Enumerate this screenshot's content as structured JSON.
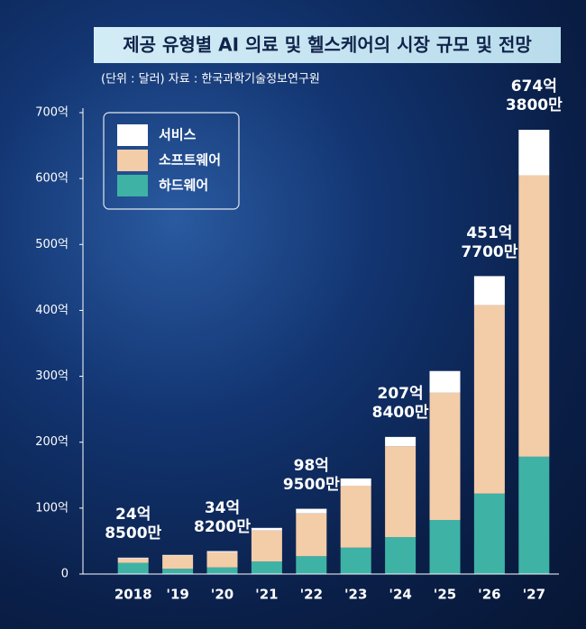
{
  "chart_data": {
    "type": "stacked_bar",
    "title": "제공 유형별 AI 의료 및 헬스케어의 시장 규모 및 전망",
    "subtitle": "(단위 : 달러)  자료 : 한국과학기술정보연구원",
    "categories": [
      "2018",
      "'19",
      "'20",
      "'21",
      "'22",
      "'23",
      "'24",
      "'25",
      "'26",
      "'27"
    ],
    "series": [
      {
        "name": "하드웨어",
        "color": "#3fb2a6",
        "values": [
          17,
          8,
          10,
          19,
          27,
          40,
          56,
          82,
          122,
          178
        ]
      },
      {
        "name": "소프트웨어",
        "color": "#f3cca8",
        "values": [
          6.5,
          20,
          23,
          47,
          65,
          94,
          138,
          193,
          286,
          427
        ]
      },
      {
        "name": "서비스",
        "color": "#ffffff",
        "values": [
          1.35,
          1,
          1.8,
          4,
          7,
          11,
          14,
          33,
          44,
          69
        ]
      }
    ],
    "totals": {
      "values": [
        24.85,
        null,
        34.82,
        null,
        98.95,
        null,
        207.84,
        null,
        451.77,
        674.38
      ],
      "value_labels": [
        "24억\n8500만",
        null,
        "34억\n8200만",
        null,
        "98억\n9500만",
        null,
        "207억\n8400만",
        null,
        "451억\n7700만",
        "674억\n3800만"
      ]
    },
    "ylim": [
      0,
      700
    ],
    "yticks": [
      0,
      {
        "value": 100,
        "label": "100억"
      },
      {
        "value": 200,
        "label": "200억"
      },
      {
        "value": 300,
        "label": "300억"
      },
      {
        "value": 400,
        "label": "400억"
      },
      {
        "value": 500,
        "label": "500억"
      },
      {
        "value": 600,
        "label": "600억"
      },
      {
        "value": 700,
        "label": "700억"
      }
    ],
    "legend": "upper left"
  }
}
